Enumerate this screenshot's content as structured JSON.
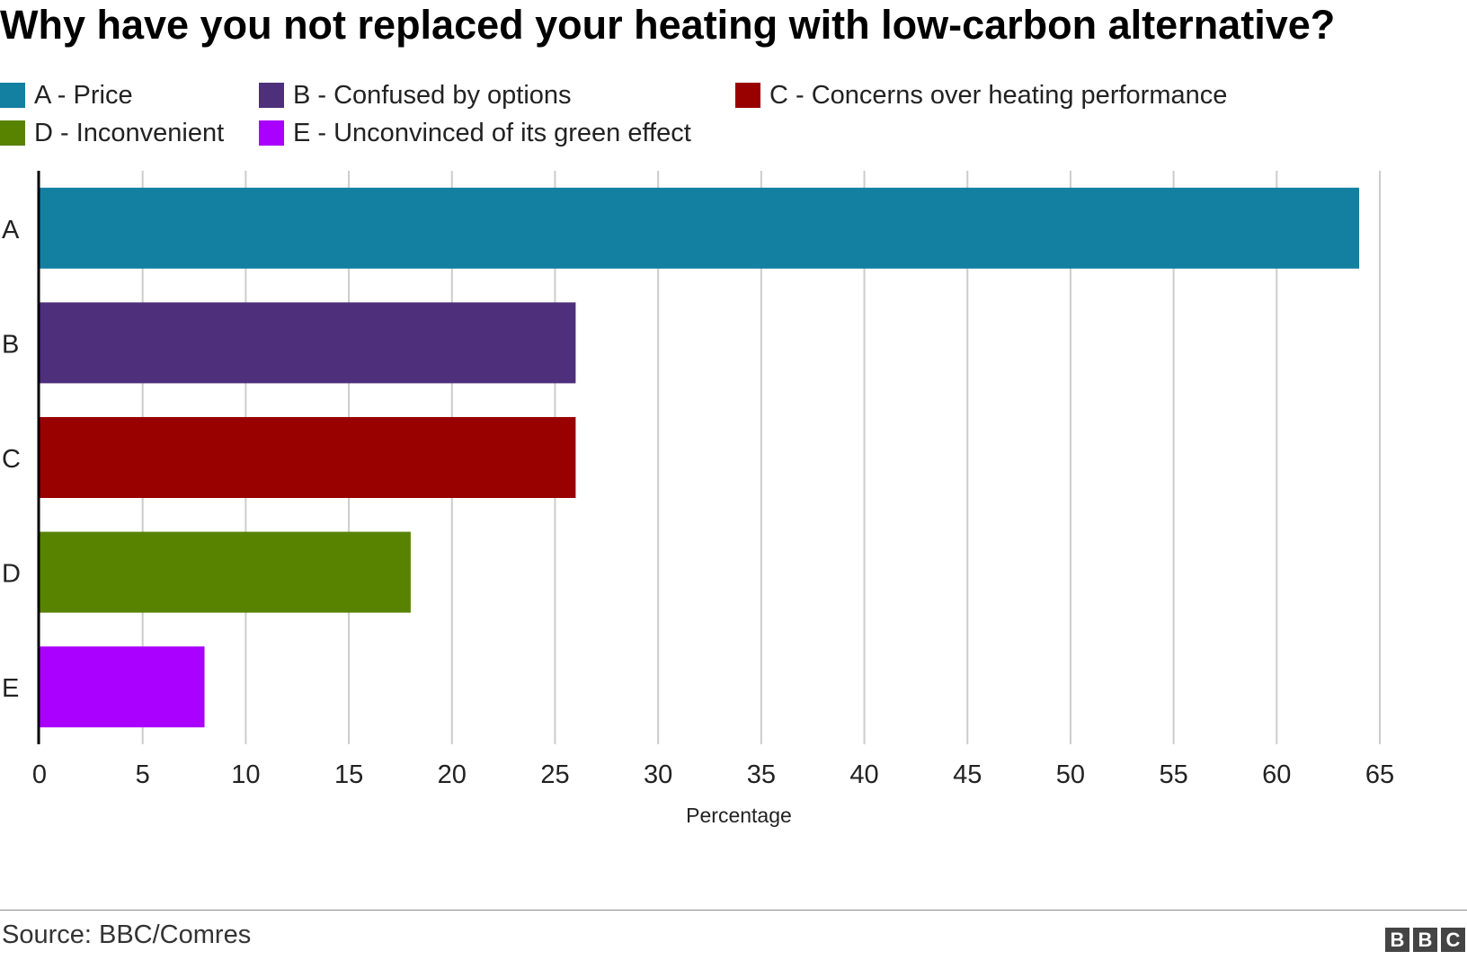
{
  "chart_data": {
    "type": "bar",
    "orientation": "horizontal",
    "title": "Why have you not replaced your heating with low-carbon alternative?",
    "categories": [
      "A",
      "B",
      "C",
      "D",
      "E"
    ],
    "values": [
      64,
      26,
      26,
      18,
      8
    ],
    "colors": [
      "#1380a1",
      "#4d2f7b",
      "#990000",
      "#588300",
      "#aa00ff"
    ],
    "legend": [
      {
        "key": "A",
        "label": "A - Price",
        "color": "#1380a1"
      },
      {
        "key": "B",
        "label": "B - Confused by options",
        "color": "#4d2f7b"
      },
      {
        "key": "C",
        "label": "C - Concerns over heating performance",
        "color": "#990000"
      },
      {
        "key": "D",
        "label": "D - Inconvenient",
        "color": "#588300"
      },
      {
        "key": "E",
        "label": "E - Unconvinced of its green effect",
        "color": "#aa00ff"
      }
    ],
    "xlabel": "Percentage",
    "ylabel": "",
    "xlim": [
      0,
      65
    ],
    "xticks": [
      0,
      5,
      10,
      15,
      20,
      25,
      30,
      35,
      40,
      45,
      50,
      55,
      60,
      65
    ],
    "grid": true,
    "legend_placement": "top"
  },
  "footer": {
    "source": "Source: BBC/Comres",
    "logo_letters": [
      "B",
      "B",
      "C"
    ]
  }
}
